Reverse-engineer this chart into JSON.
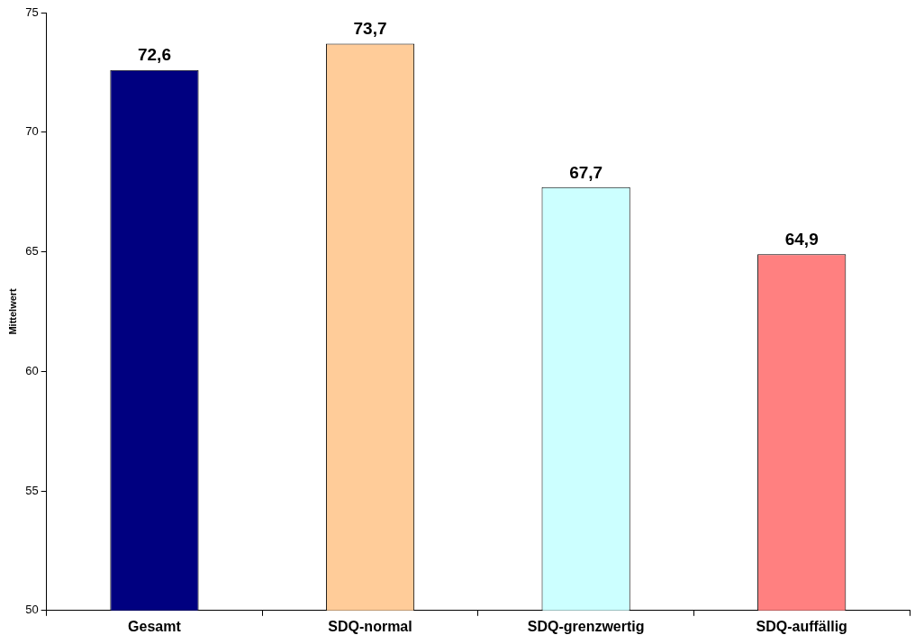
{
  "chart_data": {
    "type": "bar",
    "ylabel": "Mittelwert",
    "categories": [
      "Gesamt",
      "SDQ-normal",
      "SDQ-grenzwertig",
      "SDQ-auffällig"
    ],
    "values": [
      72.6,
      73.7,
      67.7,
      64.9
    ],
    "colors": [
      "#000080",
      "#ffcc99",
      "#ccffff",
      "#ff8080"
    ],
    "value_labels": [
      "72,6",
      "73,7",
      "67,7",
      "64,9"
    ],
    "ylim": [
      50,
      75
    ],
    "yticks": [
      50,
      55,
      60,
      65,
      70,
      75
    ],
    "grid": false,
    "legend": false
  }
}
